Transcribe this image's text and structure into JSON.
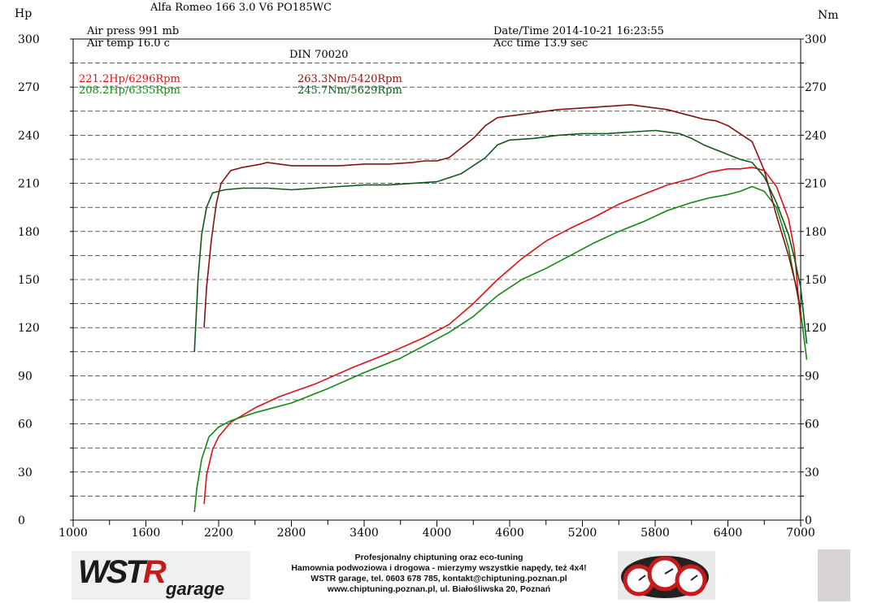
{
  "header": {
    "title": "Alfa Romeo 166 3.0 V6 PO185WC",
    "air_press": "Air press  991 mb",
    "air_temp": "Air temp  16.0 c",
    "datetime": "Date/Time  2014-10-21 16:23:55",
    "acc_time": "Acc time  13.9 sec",
    "standard": "DIN 70020"
  },
  "axes": {
    "left_unit": "Hp",
    "right_unit": "Nm"
  },
  "peaks": {
    "hp_red": "221.2Hp/6296Rpm",
    "hp_green": "208.2Hp/6355Rpm",
    "nm_red": "263.3Nm/5420Rpm",
    "nm_green": "245.7Nm/5629Rpm"
  },
  "colors": {
    "red": "#e01010",
    "green": "#108a10",
    "darkred": "#8b1010",
    "darkgreen": "#0c5a1e",
    "grid": "#000000"
  },
  "footer": {
    "logo_left": "WSTR garage",
    "logo_left_main": "WST",
    "logo_left_accent": "R",
    "logo_left_sub": "garage",
    "line1": "Profesjonalny chiptuning oraz eco-tuning",
    "line2": "Hamownia podwoziowa i drogowa - mierzymy wszystkie napędy, też 4x4!",
    "line3": "WSTR garage, tel. 0603 678 785, kontakt@chiptuning.poznan.pl",
    "line4": "www.chiptuning.poznan.pl, ul. Białośliwska 20, Poznań"
  },
  "chart_data": {
    "type": "line",
    "xlim": [
      1000,
      7000
    ],
    "xticks": [
      1000,
      1600,
      2200,
      2800,
      3400,
      4000,
      4600,
      5200,
      5800,
      6400,
      7000
    ],
    "ylim_left": [
      0,
      300
    ],
    "ylim_right": [
      0,
      300
    ],
    "yticks": [
      0,
      30,
      60,
      90,
      120,
      150,
      180,
      210,
      240,
      270,
      300
    ],
    "minor_y_step": 15,
    "minor_x_step": 300,
    "grid": true,
    "series": [
      {
        "name": "221.2Hp/6296Rpm",
        "color": "red",
        "points": [
          [
            2080,
            10
          ],
          [
            2100,
            28
          ],
          [
            2150,
            44
          ],
          [
            2200,
            52
          ],
          [
            2300,
            61
          ],
          [
            2500,
            70
          ],
          [
            2700,
            77
          ],
          [
            3000,
            85
          ],
          [
            3300,
            95
          ],
          [
            3600,
            104
          ],
          [
            3900,
            114
          ],
          [
            4100,
            122
          ],
          [
            4300,
            135
          ],
          [
            4500,
            150
          ],
          [
            4700,
            163
          ],
          [
            4900,
            174
          ],
          [
            5100,
            182
          ],
          [
            5300,
            189
          ],
          [
            5500,
            197
          ],
          [
            5700,
            203
          ],
          [
            5900,
            209
          ],
          [
            6100,
            213
          ],
          [
            6250,
            217
          ],
          [
            6400,
            219
          ],
          [
            6500,
            219
          ],
          [
            6600,
            220
          ],
          [
            6700,
            218
          ],
          [
            6800,
            208
          ],
          [
            6900,
            188
          ],
          [
            6950,
            168
          ],
          [
            6980,
            140
          ],
          [
            7000,
            125
          ]
        ]
      },
      {
        "name": "208.2Hp/6355Rpm",
        "color": "green",
        "points": [
          [
            2000,
            5
          ],
          [
            2020,
            20
          ],
          [
            2060,
            38
          ],
          [
            2120,
            52
          ],
          [
            2200,
            58
          ],
          [
            2300,
            62
          ],
          [
            2500,
            67
          ],
          [
            2800,
            73
          ],
          [
            3100,
            82
          ],
          [
            3400,
            92
          ],
          [
            3700,
            101
          ],
          [
            3900,
            109
          ],
          [
            4100,
            117
          ],
          [
            4300,
            127
          ],
          [
            4500,
            140
          ],
          [
            4700,
            150
          ],
          [
            4900,
            157
          ],
          [
            5100,
            165
          ],
          [
            5300,
            173
          ],
          [
            5500,
            180
          ],
          [
            5700,
            186
          ],
          [
            5900,
            193
          ],
          [
            6100,
            198
          ],
          [
            6250,
            201
          ],
          [
            6400,
            203
          ],
          [
            6500,
            205
          ],
          [
            6600,
            208
          ],
          [
            6700,
            205
          ],
          [
            6800,
            195
          ],
          [
            6850,
            183
          ],
          [
            6900,
            170
          ],
          [
            6950,
            150
          ],
          [
            7000,
            130
          ],
          [
            7050,
            100
          ]
        ]
      },
      {
        "name": "263.3Nm/5420Rpm",
        "color": "darkred",
        "points": [
          [
            2080,
            120
          ],
          [
            2100,
            145
          ],
          [
            2140,
            175
          ],
          [
            2180,
            197
          ],
          [
            2220,
            210
          ],
          [
            2300,
            218
          ],
          [
            2400,
            220
          ],
          [
            2550,
            222
          ],
          [
            2600,
            223
          ],
          [
            2800,
            221
          ],
          [
            3000,
            221
          ],
          [
            3200,
            221
          ],
          [
            3400,
            222
          ],
          [
            3600,
            222
          ],
          [
            3800,
            223
          ],
          [
            3900,
            224
          ],
          [
            4000,
            224
          ],
          [
            4100,
            226
          ],
          [
            4200,
            232
          ],
          [
            4300,
            238
          ],
          [
            4400,
            246
          ],
          [
            4500,
            251
          ],
          [
            4600,
            252
          ],
          [
            4800,
            254
          ],
          [
            5000,
            256
          ],
          [
            5200,
            257
          ],
          [
            5400,
            258
          ],
          [
            5600,
            259
          ],
          [
            5700,
            258
          ],
          [
            5800,
            257
          ],
          [
            5900,
            256
          ],
          [
            6000,
            254
          ],
          [
            6100,
            252
          ],
          [
            6200,
            250
          ],
          [
            6300,
            249
          ],
          [
            6400,
            246
          ],
          [
            6500,
            241
          ],
          [
            6600,
            236
          ],
          [
            6700,
            218
          ],
          [
            6800,
            190
          ],
          [
            6900,
            165
          ],
          [
            6950,
            150
          ],
          [
            6980,
            140
          ],
          [
            7000,
            128
          ]
        ]
      },
      {
        "name": "245.7Nm/5629Rpm",
        "color": "darkgreen",
        "points": [
          [
            2000,
            105
          ],
          [
            2030,
            150
          ],
          [
            2060,
            178
          ],
          [
            2100,
            195
          ],
          [
            2150,
            204
          ],
          [
            2250,
            206
          ],
          [
            2400,
            207
          ],
          [
            2600,
            207
          ],
          [
            2800,
            206
          ],
          [
            3000,
            207
          ],
          [
            3200,
            208
          ],
          [
            3400,
            209
          ],
          [
            3600,
            209
          ],
          [
            3800,
            210
          ],
          [
            4000,
            211
          ],
          [
            4200,
            216
          ],
          [
            4400,
            226
          ],
          [
            4500,
            234
          ],
          [
            4600,
            237
          ],
          [
            4800,
            238
          ],
          [
            5000,
            240
          ],
          [
            5200,
            241
          ],
          [
            5400,
            241
          ],
          [
            5600,
            242
          ],
          [
            5800,
            243
          ],
          [
            6000,
            241
          ],
          [
            6100,
            238
          ],
          [
            6200,
            234
          ],
          [
            6300,
            231
          ],
          [
            6400,
            228
          ],
          [
            6500,
            225
          ],
          [
            6600,
            223
          ],
          [
            6700,
            214
          ],
          [
            6800,
            198
          ],
          [
            6900,
            178
          ],
          [
            6950,
            163
          ],
          [
            7000,
            145
          ],
          [
            7050,
            110
          ]
        ]
      }
    ]
  }
}
